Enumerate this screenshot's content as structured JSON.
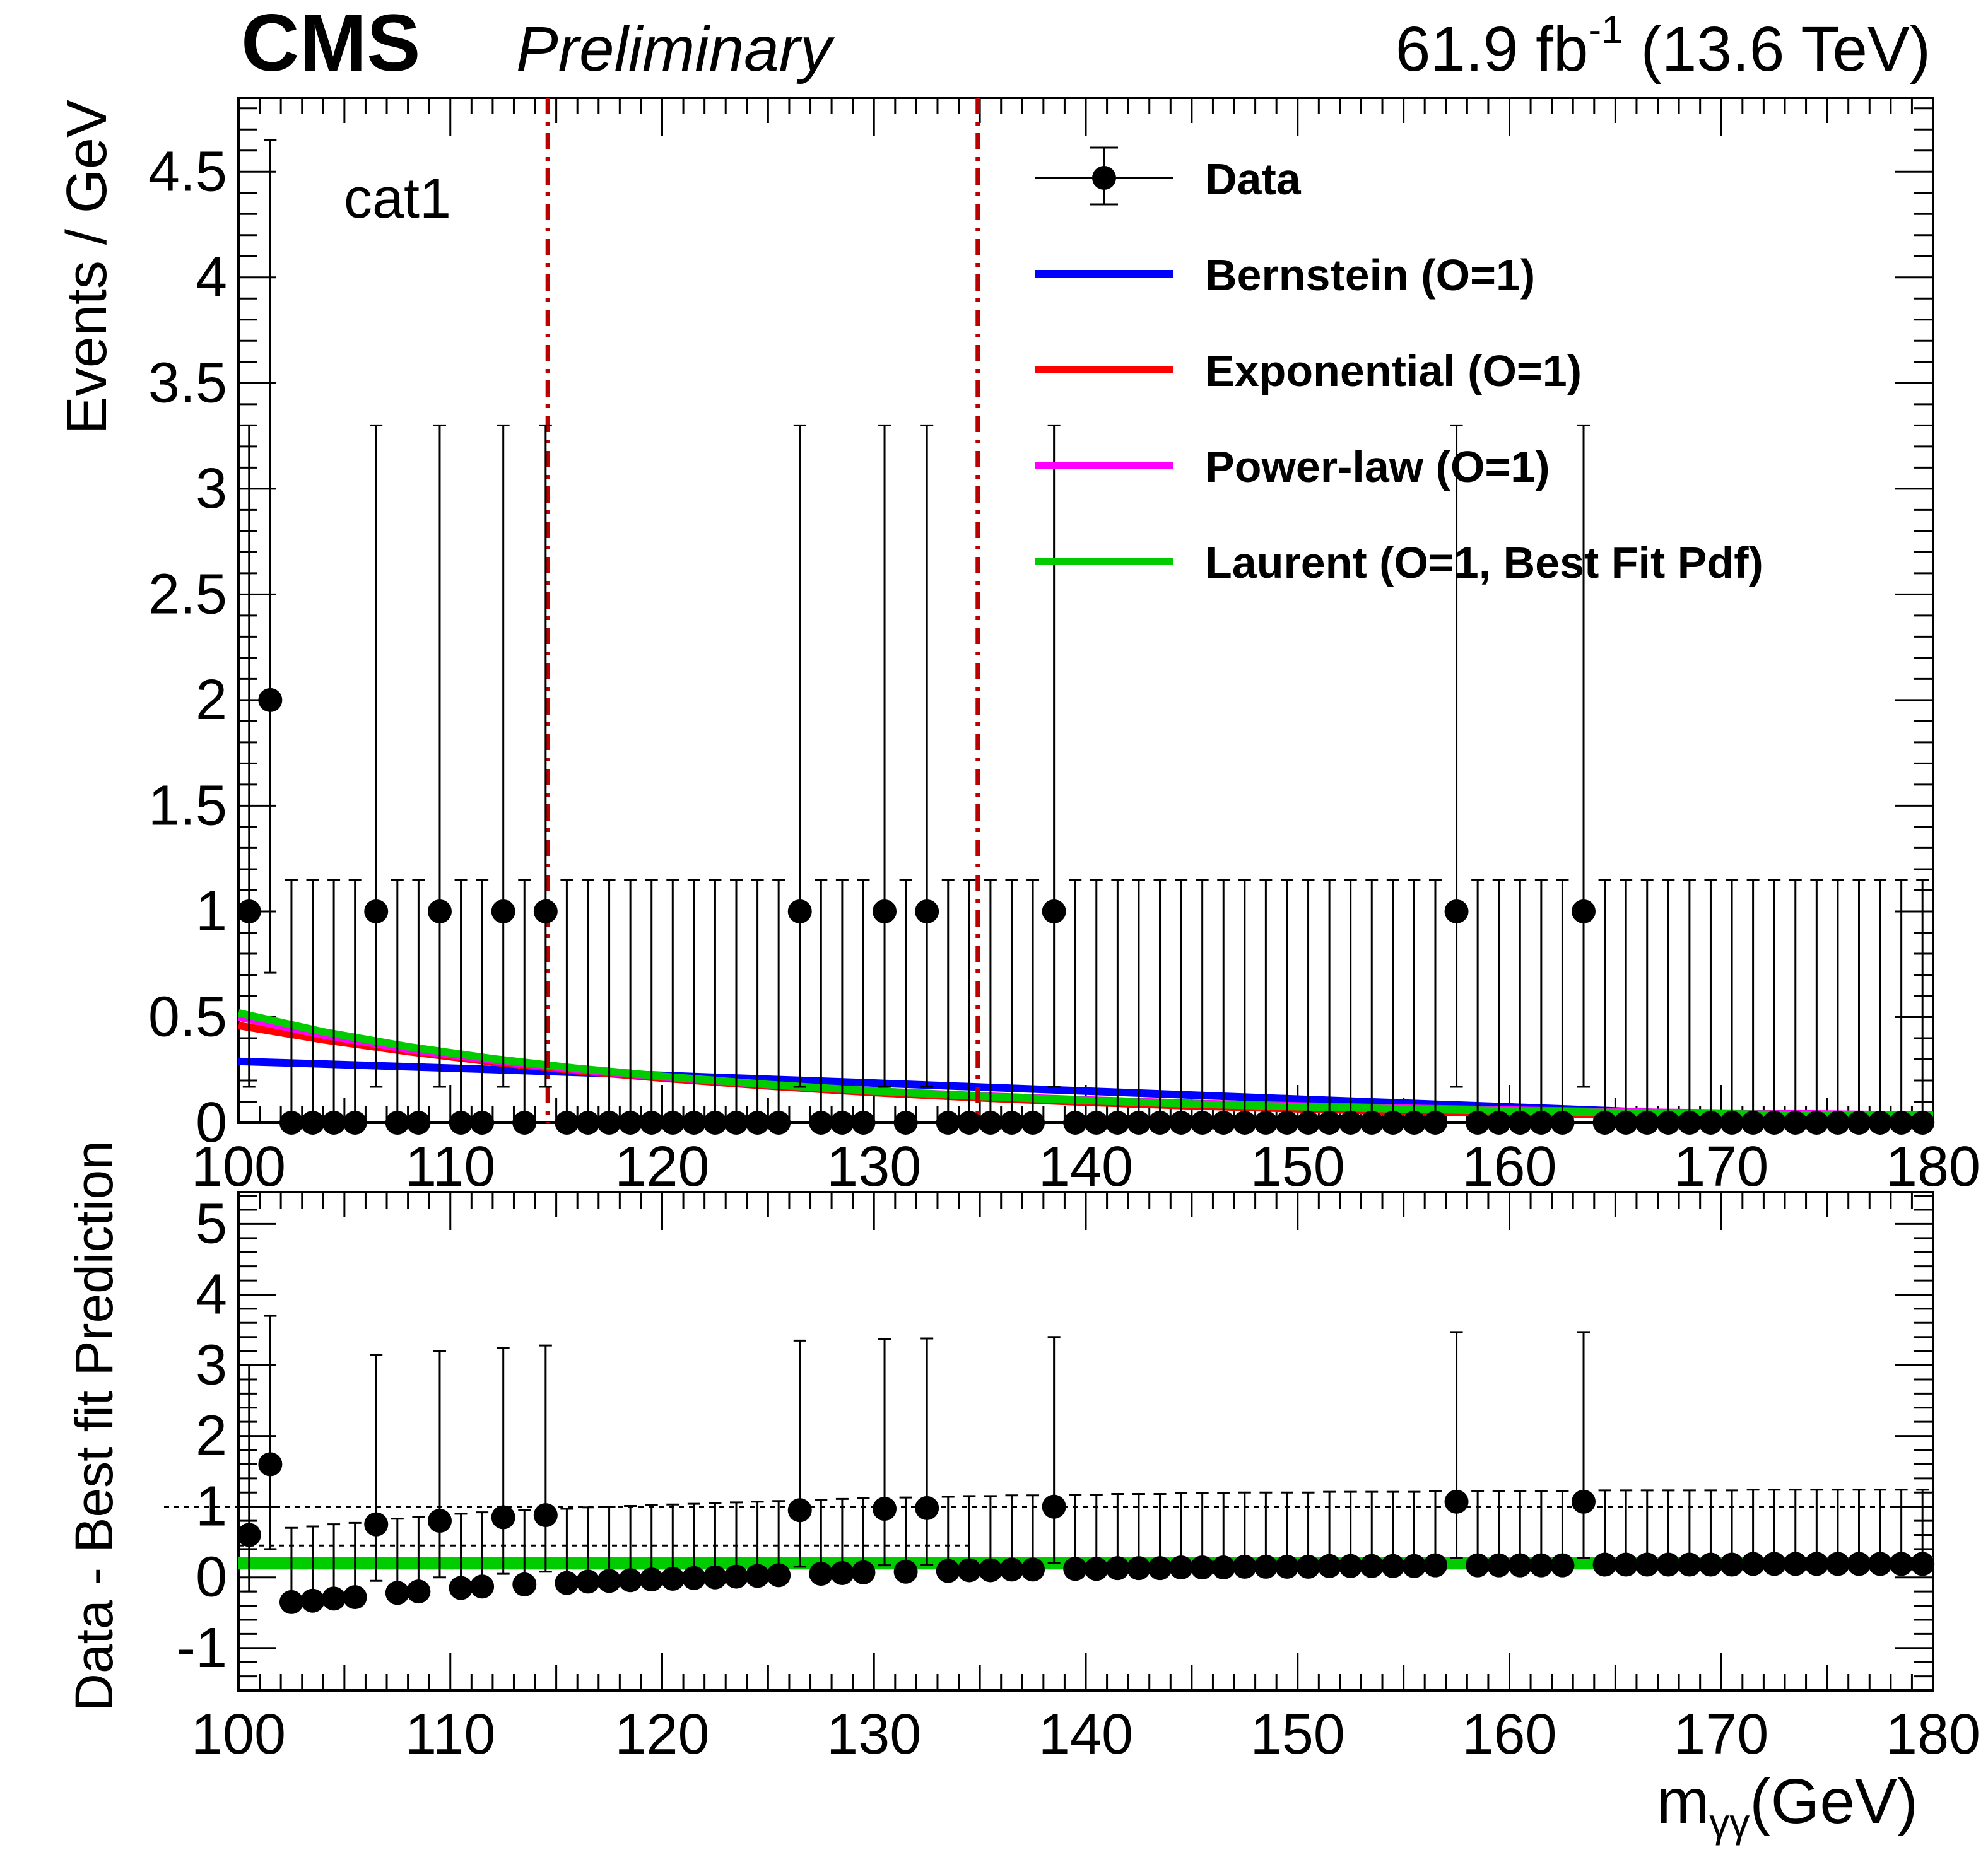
{
  "header": {
    "experiment": "CMS",
    "status": "Preliminary",
    "lumi_value": "61.9 fb",
    "lumi_exp": "-1",
    "energy": " (13.6 TeV)"
  },
  "category_label": "cat1",
  "chart_data": [
    {
      "type": "scatter",
      "panel": "upper",
      "ylabel": "Events / GeV",
      "xlim": [
        100,
        180
      ],
      "ylim": [
        0,
        4.85
      ],
      "y_ticks": [
        "0",
        "0.5",
        "1",
        "1.5",
        "2",
        "2.5",
        "3",
        "3.5",
        "4",
        "4.5"
      ],
      "x_ticks": [
        "100",
        "110",
        "120",
        "130",
        "140",
        "150",
        "160",
        "170",
        "180"
      ],
      "signal_window_lines": [
        114.6,
        134.9
      ],
      "legend": {
        "placement": "top-right",
        "entries": [
          {
            "label": "Data",
            "color": "#000000",
            "kind": "marker"
          },
          {
            "label": "Bernstein (O=1)",
            "color": "#0000ff",
            "kind": "line"
          },
          {
            "label": "Exponential (O=1)",
            "color": "#ff0000",
            "kind": "line"
          },
          {
            "label": "Power-law (O=1)",
            "color": "#ff00ff",
            "kind": "line"
          },
          {
            "label": "Laurent (O=1, Best Fit Pdf)",
            "color": "#00cc00",
            "kind": "line"
          }
        ]
      },
      "data_x": [
        100.5,
        101.5,
        102.5,
        103.5,
        104.5,
        105.5,
        106.5,
        107.5,
        108.5,
        109.5,
        110.5,
        111.5,
        112.5,
        113.5,
        114.5,
        115.5,
        116.5,
        117.5,
        118.5,
        119.5,
        120.5,
        121.5,
        122.5,
        123.5,
        124.5,
        125.5,
        126.5,
        127.5,
        128.5,
        129.5,
        130.5,
        131.5,
        132.5,
        133.5,
        134.5,
        135.5,
        136.5,
        137.5,
        138.5,
        139.5,
        140.5,
        141.5,
        142.5,
        143.5,
        144.5,
        145.5,
        146.5,
        147.5,
        148.5,
        149.5,
        150.5,
        151.5,
        152.5,
        153.5,
        154.5,
        155.5,
        156.5,
        157.5,
        158.5,
        159.5,
        160.5,
        161.5,
        162.5,
        163.5,
        164.5,
        165.5,
        166.5,
        167.5,
        168.5,
        169.5,
        170.5,
        171.5,
        172.5,
        173.5,
        174.5,
        175.5,
        176.5,
        177.5,
        178.5,
        179.5
      ],
      "data_y": [
        1,
        2,
        0,
        0,
        0,
        0,
        1,
        0,
        0,
        1,
        0,
        0,
        1,
        0,
        1,
        0,
        0,
        0,
        0,
        0,
        0,
        0,
        0,
        0,
        0,
        0,
        1,
        0,
        0,
        0,
        1,
        0,
        1,
        0,
        0,
        0,
        0,
        0,
        1,
        0,
        0,
        0,
        0,
        0,
        0,
        0,
        0,
        0,
        0,
        0,
        0,
        0,
        0,
        0,
        0,
        0,
        0,
        1,
        0,
        0,
        0,
        0,
        0,
        1,
        0,
        0,
        0,
        0,
        0,
        0,
        0,
        0,
        0,
        0,
        0,
        0,
        0,
        0,
        0,
        0
      ],
      "error_up": {
        "n0": 1.15,
        "n1": 2.3,
        "n2": 2.65
      },
      "error_down": {
        "n0": 0,
        "n1": 0.83,
        "n2": 1.29
      },
      "fits": {
        "x": [
          100,
          104,
          108,
          112,
          116,
          120,
          125,
          130,
          135,
          140,
          145,
          150,
          155,
          160,
          165,
          170,
          175,
          180
        ],
        "bernstein": [
          0.29,
          0.278,
          0.265,
          0.252,
          0.238,
          0.224,
          0.206,
          0.188,
          0.169,
          0.15,
          0.131,
          0.112,
          0.093,
          0.075,
          0.056,
          0.037,
          0.019,
          0.0
        ],
        "exponential": [
          0.46,
          0.393,
          0.337,
          0.288,
          0.246,
          0.211,
          0.174,
          0.143,
          0.118,
          0.097,
          0.08,
          0.066,
          0.054,
          0.045,
          0.037,
          0.03,
          0.025,
          0.021
        ],
        "powerlaw": [
          0.5,
          0.415,
          0.348,
          0.295,
          0.252,
          0.217,
          0.18,
          0.15,
          0.127,
          0.108,
          0.092,
          0.08,
          0.069,
          0.06,
          0.052,
          0.046,
          0.041,
          0.036
        ],
        "laurent": [
          0.52,
          0.43,
          0.36,
          0.303,
          0.257,
          0.22,
          0.181,
          0.15,
          0.125,
          0.105,
          0.089,
          0.076,
          0.065,
          0.056,
          0.048,
          0.042,
          0.037,
          0.033
        ]
      }
    },
    {
      "type": "scatter",
      "panel": "lower",
      "ylabel": "Data - Best fit Prediction",
      "xlabel_main": "m",
      "xlabel_sub": "γγ",
      "xlabel_unit": "(GeV)",
      "xlim": [
        100,
        180
      ],
      "ylim": [
        -1.6,
        5.45
      ],
      "y_ticks": [
        "-1",
        "0",
        "1",
        "2",
        "3",
        "4",
        "5"
      ],
      "x_ticks": [
        "100",
        "110",
        "120",
        "130",
        "140",
        "150",
        "160",
        "170",
        "180"
      ],
      "reference_lines": [
        1.0,
        0.2
      ],
      "band": {
        "y": 0.2,
        "color": "#00cc00"
      },
      "residual_y": [
        0.6,
        1.6,
        -0.35,
        -0.33,
        -0.3,
        -0.28,
        0.75,
        -0.22,
        -0.2,
        0.8,
        -0.15,
        -0.13,
        0.85,
        -0.1,
        0.88,
        -0.08,
        -0.06,
        -0.05,
        -0.04,
        -0.03,
        -0.02,
        -0.01,
        0.0,
        0.01,
        0.02,
        0.03,
        0.95,
        0.05,
        0.06,
        0.07,
        0.97,
        0.08,
        0.98,
        0.09,
        0.1,
        0.1,
        0.11,
        0.11,
        1.0,
        0.12,
        0.12,
        0.13,
        0.13,
        0.13,
        0.14,
        0.14,
        0.14,
        0.15,
        0.15,
        0.15,
        0.15,
        0.16,
        0.16,
        0.16,
        0.16,
        0.16,
        0.17,
        1.07,
        0.17,
        0.17,
        0.17,
        0.17,
        0.17,
        1.07,
        0.18,
        0.18,
        0.18,
        0.18,
        0.18,
        0.18,
        0.18,
        0.19,
        0.19,
        0.19,
        0.19,
        0.19,
        0.19,
        0.19,
        0.19,
        0.19
      ],
      "residual_err_up": {
        "n0": 1.05,
        "n1": 2.4,
        "n2": 2.1
      },
      "residual_err_down": {
        "n0": 0,
        "n1": 0.8,
        "n2": 1.2
      }
    }
  ]
}
